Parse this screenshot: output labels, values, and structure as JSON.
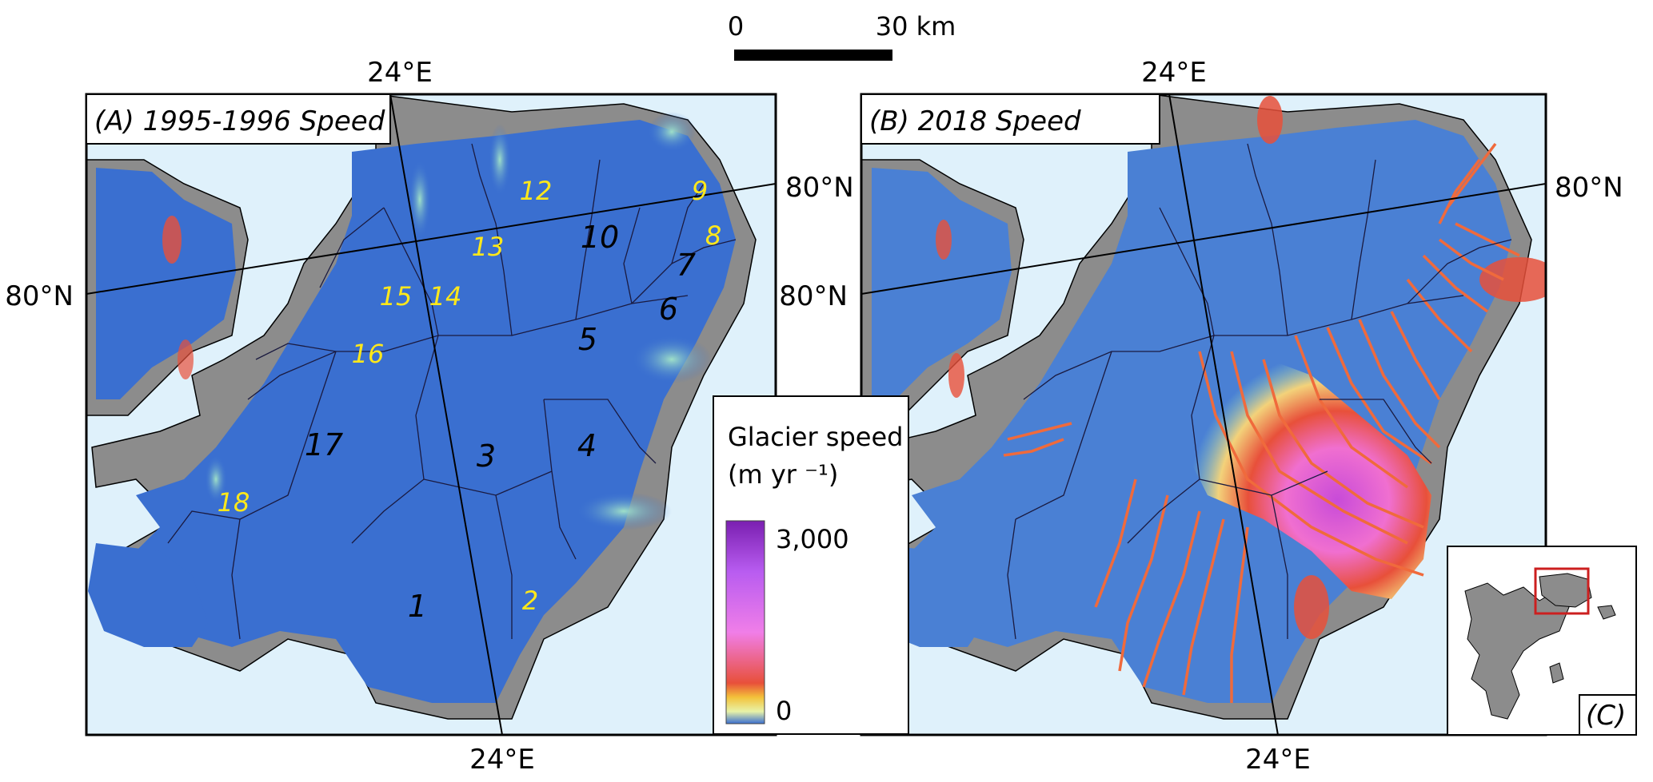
{
  "scale_bar": {
    "start_label": "0",
    "end_label": "30 km"
  },
  "panel_a": {
    "title": "(A) 1995-1996 Speed",
    "lon_top": "24°E",
    "lon_bottom": "24°E",
    "lat_left": "80°N",
    "lat_right": "80°N",
    "basins": [
      {
        "id": "1",
        "color": "black"
      },
      {
        "id": "2",
        "color": "yellow"
      },
      {
        "id": "3",
        "color": "black"
      },
      {
        "id": "4",
        "color": "black"
      },
      {
        "id": "5",
        "color": "black"
      },
      {
        "id": "6",
        "color": "black"
      },
      {
        "id": "7",
        "color": "black"
      },
      {
        "id": "8",
        "color": "yellow"
      },
      {
        "id": "9",
        "color": "yellow"
      },
      {
        "id": "10",
        "color": "black"
      },
      {
        "id": "12",
        "color": "yellow"
      },
      {
        "id": "13",
        "color": "yellow"
      },
      {
        "id": "14",
        "color": "yellow"
      },
      {
        "id": "15",
        "color": "yellow"
      },
      {
        "id": "16",
        "color": "yellow"
      },
      {
        "id": "17",
        "color": "black"
      },
      {
        "id": "18",
        "color": "yellow"
      }
    ]
  },
  "panel_b": {
    "title": "(B) 2018 Speed",
    "lon_top": "24°E",
    "lon_bottom": "24°E",
    "lat_left": "80°N",
    "lat_right": "80°N"
  },
  "panel_c": {
    "title": "(C)"
  },
  "legend": {
    "title_line1": "Glacier speed",
    "title_line2": "(m yr ⁻¹)",
    "max_label": "3,000",
    "min_label": "0",
    "max_value": 3000,
    "min_value": 0
  },
  "colors": {
    "ice_slow": "#3a6fd0",
    "ice_mid": "#7cc4c0",
    "ice_fast": "#e8503a",
    "ice_fastest": "#7a1fb0",
    "rock": "#8c8c8c",
    "ocean": "#dff1fb",
    "flowline": "#f06a3c",
    "label_yellow": "#ffe81a",
    "inset_box": "#cc1f1f"
  }
}
